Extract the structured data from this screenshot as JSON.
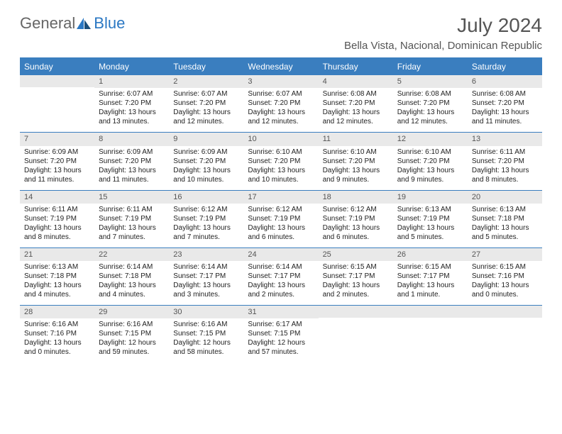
{
  "logo": {
    "general": "General",
    "blue": "Blue"
  },
  "title": "July 2024",
  "location": "Bella Vista, Nacional, Dominican Republic",
  "day_headers": [
    "Sunday",
    "Monday",
    "Tuesday",
    "Wednesday",
    "Thursday",
    "Friday",
    "Saturday"
  ],
  "colors": {
    "header_bg": "#3a7ebf",
    "header_text": "#ffffff",
    "daynum_bg": "#e9e9e9",
    "border": "#3a7ebf",
    "logo_blue": "#2b78c3",
    "logo_gray": "#666666",
    "body_text": "#222222"
  },
  "weeks": [
    [
      null,
      {
        "n": "1",
        "sunrise": "Sunrise: 6:07 AM",
        "sunset": "Sunset: 7:20 PM",
        "daylight": "Daylight: 13 hours and 13 minutes."
      },
      {
        "n": "2",
        "sunrise": "Sunrise: 6:07 AM",
        "sunset": "Sunset: 7:20 PM",
        "daylight": "Daylight: 13 hours and 12 minutes."
      },
      {
        "n": "3",
        "sunrise": "Sunrise: 6:07 AM",
        "sunset": "Sunset: 7:20 PM",
        "daylight": "Daylight: 13 hours and 12 minutes."
      },
      {
        "n": "4",
        "sunrise": "Sunrise: 6:08 AM",
        "sunset": "Sunset: 7:20 PM",
        "daylight": "Daylight: 13 hours and 12 minutes."
      },
      {
        "n": "5",
        "sunrise": "Sunrise: 6:08 AM",
        "sunset": "Sunset: 7:20 PM",
        "daylight": "Daylight: 13 hours and 12 minutes."
      },
      {
        "n": "6",
        "sunrise": "Sunrise: 6:08 AM",
        "sunset": "Sunset: 7:20 PM",
        "daylight": "Daylight: 13 hours and 11 minutes."
      }
    ],
    [
      {
        "n": "7",
        "sunrise": "Sunrise: 6:09 AM",
        "sunset": "Sunset: 7:20 PM",
        "daylight": "Daylight: 13 hours and 11 minutes."
      },
      {
        "n": "8",
        "sunrise": "Sunrise: 6:09 AM",
        "sunset": "Sunset: 7:20 PM",
        "daylight": "Daylight: 13 hours and 11 minutes."
      },
      {
        "n": "9",
        "sunrise": "Sunrise: 6:09 AM",
        "sunset": "Sunset: 7:20 PM",
        "daylight": "Daylight: 13 hours and 10 minutes."
      },
      {
        "n": "10",
        "sunrise": "Sunrise: 6:10 AM",
        "sunset": "Sunset: 7:20 PM",
        "daylight": "Daylight: 13 hours and 10 minutes."
      },
      {
        "n": "11",
        "sunrise": "Sunrise: 6:10 AM",
        "sunset": "Sunset: 7:20 PM",
        "daylight": "Daylight: 13 hours and 9 minutes."
      },
      {
        "n": "12",
        "sunrise": "Sunrise: 6:10 AM",
        "sunset": "Sunset: 7:20 PM",
        "daylight": "Daylight: 13 hours and 9 minutes."
      },
      {
        "n": "13",
        "sunrise": "Sunrise: 6:11 AM",
        "sunset": "Sunset: 7:20 PM",
        "daylight": "Daylight: 13 hours and 8 minutes."
      }
    ],
    [
      {
        "n": "14",
        "sunrise": "Sunrise: 6:11 AM",
        "sunset": "Sunset: 7:19 PM",
        "daylight": "Daylight: 13 hours and 8 minutes."
      },
      {
        "n": "15",
        "sunrise": "Sunrise: 6:11 AM",
        "sunset": "Sunset: 7:19 PM",
        "daylight": "Daylight: 13 hours and 7 minutes."
      },
      {
        "n": "16",
        "sunrise": "Sunrise: 6:12 AM",
        "sunset": "Sunset: 7:19 PM",
        "daylight": "Daylight: 13 hours and 7 minutes."
      },
      {
        "n": "17",
        "sunrise": "Sunrise: 6:12 AM",
        "sunset": "Sunset: 7:19 PM",
        "daylight": "Daylight: 13 hours and 6 minutes."
      },
      {
        "n": "18",
        "sunrise": "Sunrise: 6:12 AM",
        "sunset": "Sunset: 7:19 PM",
        "daylight": "Daylight: 13 hours and 6 minutes."
      },
      {
        "n": "19",
        "sunrise": "Sunrise: 6:13 AM",
        "sunset": "Sunset: 7:19 PM",
        "daylight": "Daylight: 13 hours and 5 minutes."
      },
      {
        "n": "20",
        "sunrise": "Sunrise: 6:13 AM",
        "sunset": "Sunset: 7:18 PM",
        "daylight": "Daylight: 13 hours and 5 minutes."
      }
    ],
    [
      {
        "n": "21",
        "sunrise": "Sunrise: 6:13 AM",
        "sunset": "Sunset: 7:18 PM",
        "daylight": "Daylight: 13 hours and 4 minutes."
      },
      {
        "n": "22",
        "sunrise": "Sunrise: 6:14 AM",
        "sunset": "Sunset: 7:18 PM",
        "daylight": "Daylight: 13 hours and 4 minutes."
      },
      {
        "n": "23",
        "sunrise": "Sunrise: 6:14 AM",
        "sunset": "Sunset: 7:17 PM",
        "daylight": "Daylight: 13 hours and 3 minutes."
      },
      {
        "n": "24",
        "sunrise": "Sunrise: 6:14 AM",
        "sunset": "Sunset: 7:17 PM",
        "daylight": "Daylight: 13 hours and 2 minutes."
      },
      {
        "n": "25",
        "sunrise": "Sunrise: 6:15 AM",
        "sunset": "Sunset: 7:17 PM",
        "daylight": "Daylight: 13 hours and 2 minutes."
      },
      {
        "n": "26",
        "sunrise": "Sunrise: 6:15 AM",
        "sunset": "Sunset: 7:17 PM",
        "daylight": "Daylight: 13 hours and 1 minute."
      },
      {
        "n": "27",
        "sunrise": "Sunrise: 6:15 AM",
        "sunset": "Sunset: 7:16 PM",
        "daylight": "Daylight: 13 hours and 0 minutes."
      }
    ],
    [
      {
        "n": "28",
        "sunrise": "Sunrise: 6:16 AM",
        "sunset": "Sunset: 7:16 PM",
        "daylight": "Daylight: 13 hours and 0 minutes."
      },
      {
        "n": "29",
        "sunrise": "Sunrise: 6:16 AM",
        "sunset": "Sunset: 7:15 PM",
        "daylight": "Daylight: 12 hours and 59 minutes."
      },
      {
        "n": "30",
        "sunrise": "Sunrise: 6:16 AM",
        "sunset": "Sunset: 7:15 PM",
        "daylight": "Daylight: 12 hours and 58 minutes."
      },
      {
        "n": "31",
        "sunrise": "Sunrise: 6:17 AM",
        "sunset": "Sunset: 7:15 PM",
        "daylight": "Daylight: 12 hours and 57 minutes."
      },
      null,
      null,
      null
    ]
  ]
}
